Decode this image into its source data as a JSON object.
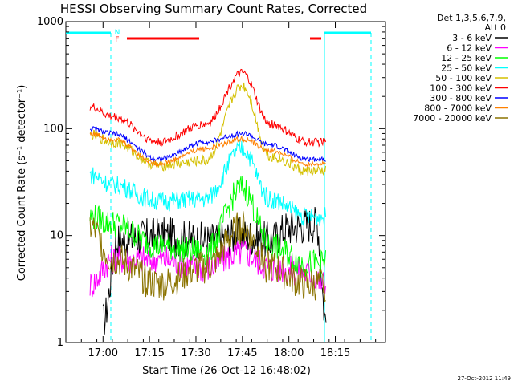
{
  "chart_data": {
    "type": "line",
    "title": "HESSI Observing Summary Count Rates, Corrected",
    "xlabel": "Start Time (26-Oct-12 16:48:02)",
    "ylabel": "Corrected Count Rate (s⁻¹ detector⁻¹)",
    "yscale": "log",
    "ylim": [
      1,
      1000
    ],
    "xlim_minutes": [
      16.8,
      18.52
    ],
    "x_ticks": [
      {
        "t": 17.0,
        "label": "17:00"
      },
      {
        "t": 17.25,
        "label": "17:15"
      },
      {
        "t": 17.5,
        "label": "17:30"
      },
      {
        "t": 17.75,
        "label": "17:45"
      },
      {
        "t": 18.0,
        "label": "18:00"
      },
      {
        "t": 18.25,
        "label": "18:15"
      }
    ],
    "y_ticks": [
      {
        "v": 1,
        "label": "1"
      },
      {
        "v": 10,
        "label": "10"
      },
      {
        "v": 100,
        "label": "100"
      },
      {
        "v": 1000,
        "label": "1000"
      }
    ],
    "legend_header": [
      "Det 1,3,5,6,7,9,",
      "Att 0"
    ],
    "legend_placement": "right",
    "series": [
      {
        "name": "3 - 6 keV",
        "color": "#000000",
        "values": [
          [
            17.0,
            1.6
          ],
          [
            17.08,
            9
          ],
          [
            17.3,
            10
          ],
          [
            17.55,
            9
          ],
          [
            17.75,
            10
          ],
          [
            17.9,
            9
          ],
          [
            18.0,
            12
          ],
          [
            18.15,
            13
          ],
          [
            18.2,
            1.6
          ]
        ]
      },
      {
        "name": "6 - 12 keV",
        "color": "#ff00ff",
        "values": [
          [
            16.93,
            3.5
          ],
          [
            17.05,
            6
          ],
          [
            17.3,
            6
          ],
          [
            17.55,
            5
          ],
          [
            17.75,
            7
          ],
          [
            17.9,
            5
          ],
          [
            18.1,
            4.5
          ],
          [
            18.2,
            3.5
          ]
        ]
      },
      {
        "name": "12 - 25 keV",
        "color": "#00ff00",
        "values": [
          [
            16.93,
            15
          ],
          [
            17.05,
            13
          ],
          [
            17.3,
            8
          ],
          [
            17.55,
            7
          ],
          [
            17.75,
            28
          ],
          [
            17.9,
            8
          ],
          [
            18.1,
            5.5
          ],
          [
            18.2,
            5.5
          ]
        ]
      },
      {
        "name": "25 - 50 keV",
        "color": "#00ffff",
        "values": [
          [
            16.93,
            37
          ],
          [
            17.05,
            30
          ],
          [
            17.3,
            21
          ],
          [
            17.55,
            22
          ],
          [
            17.75,
            65
          ],
          [
            17.9,
            22
          ],
          [
            18.1,
            15
          ],
          [
            18.2,
            15
          ]
        ]
      },
      {
        "name": "50 - 100 keV",
        "color": "#d4c000",
        "values": [
          [
            16.93,
            87
          ],
          [
            17.05,
            75
          ],
          [
            17.3,
            45
          ],
          [
            17.55,
            50
          ],
          [
            17.75,
            250
          ],
          [
            17.9,
            55
          ],
          [
            18.1,
            40
          ],
          [
            18.2,
            40
          ]
        ]
      },
      {
        "name": "100 - 300 keV",
        "color": "#ff0000",
        "values": [
          [
            16.93,
            160
          ],
          [
            17.05,
            130
          ],
          [
            17.3,
            75
          ],
          [
            17.55,
            110
          ],
          [
            17.75,
            330
          ],
          [
            17.9,
            110
          ],
          [
            18.1,
            75
          ],
          [
            18.2,
            75
          ]
        ]
      },
      {
        "name": "300 - 800 keV",
        "color": "#0000ff",
        "values": [
          [
            16.93,
            100
          ],
          [
            17.05,
            90
          ],
          [
            17.3,
            52
          ],
          [
            17.55,
            75
          ],
          [
            17.75,
            90
          ],
          [
            17.9,
            70
          ],
          [
            18.1,
            52
          ],
          [
            18.2,
            52
          ]
        ]
      },
      {
        "name": "800 - 7000 keV",
        "color": "#ff8000",
        "values": [
          [
            16.93,
            90
          ],
          [
            17.05,
            80
          ],
          [
            17.3,
            47
          ],
          [
            17.55,
            65
          ],
          [
            17.75,
            80
          ],
          [
            17.9,
            62
          ],
          [
            18.1,
            47
          ],
          [
            18.2,
            47
          ]
        ]
      },
      {
        "name": "7000 - 20000 keV",
        "color": "#8b7300",
        "values": [
          [
            16.93,
            12
          ],
          [
            17.05,
            6
          ],
          [
            17.3,
            3.5
          ],
          [
            17.55,
            5
          ],
          [
            17.75,
            12
          ],
          [
            17.9,
            5
          ],
          [
            18.1,
            3.5
          ],
          [
            18.2,
            3.5
          ]
        ]
      }
    ],
    "flag_labels": [
      "N",
      "F"
    ],
    "timestamp": "27-Oct-2012 11:49"
  }
}
